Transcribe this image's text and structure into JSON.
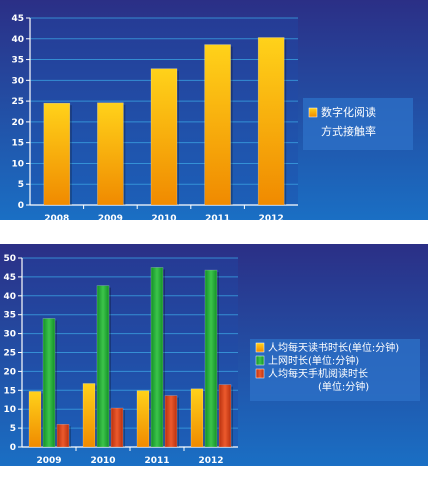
{
  "colors": {
    "bg_top": "#2b2f86",
    "bg_bottom": "#1a6fc4",
    "grid": "#3aa0e0",
    "yellow": "#f5b800",
    "green": "#1fa33a",
    "red": "#d8401e",
    "legend_box": "#2d72c8"
  },
  "chart_data": [
    {
      "type": "bar",
      "categories": [
        "2008",
        "2009",
        "2010",
        "2011",
        "2012"
      ],
      "series": [
        {
          "name": "数字化阅读方式接触率",
          "values": [
            24.5,
            24.6,
            32.8,
            38.6,
            40.3
          ]
        }
      ],
      "ylim": [
        0,
        45
      ],
      "yticks": [
        0,
        5,
        10,
        15,
        20,
        25,
        30,
        35,
        40,
        45
      ],
      "grid": true,
      "legend": "right",
      "legend_lines": [
        [
          "数字化阅读",
          "方式接触率"
        ]
      ]
    },
    {
      "type": "bar",
      "categories": [
        "2009",
        "2010",
        "2011",
        "2012"
      ],
      "series": [
        {
          "name": "人均每天读书时长(单位:分钟)",
          "values": [
            14.7,
            16.8,
            14.9,
            15.4
          ]
        },
        {
          "name": "上网时长(单位:分钟)",
          "values": [
            34.0,
            42.7,
            47.5,
            46.8
          ]
        },
        {
          "name": "人均每天手机阅读时长(单位:分钟)",
          "values": [
            6.0,
            10.3,
            13.6,
            16.5
          ]
        }
      ],
      "ylim": [
        0,
        50
      ],
      "yticks": [
        0,
        5,
        10,
        15,
        20,
        25,
        30,
        35,
        40,
        45,
        50
      ],
      "grid": true,
      "legend": "right",
      "legend_lines": [
        [
          "人均每天读书时长(单位:分钟)"
        ],
        [
          "上网时长(单位:分钟)"
        ],
        [
          "人均每天手机阅读时长",
          "(单位:分钟)"
        ]
      ]
    }
  ]
}
